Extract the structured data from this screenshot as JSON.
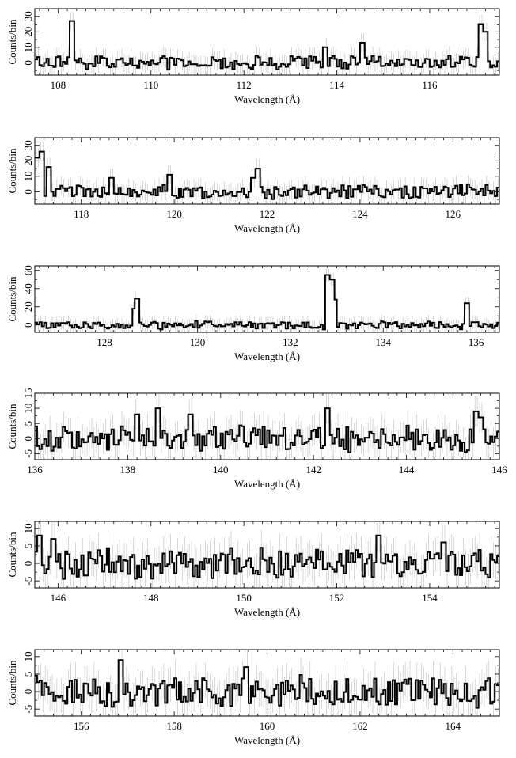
{
  "chart_data": [
    {
      "type": "line",
      "step": true,
      "xlabel": "Wavelength (Å)",
      "ylabel": "Counts/bin",
      "xlim": [
        107.5,
        117.5
      ],
      "ylim": [
        -8,
        35
      ],
      "xticks": [
        108,
        110,
        112,
        114,
        116
      ],
      "yticks": [
        0,
        10,
        20,
        30
      ],
      "peaks": [
        {
          "x": 108.3,
          "y": 27
        },
        {
          "x": 113.75,
          "y": 10
        },
        {
          "x": 114.55,
          "y": 13
        },
        {
          "x": 117.1,
          "y": 25
        },
        {
          "x": 117.2,
          "y": 20
        }
      ],
      "baseline_noise": 4,
      "error_bar_size": 6
    },
    {
      "type": "line",
      "step": true,
      "xlabel": "Wavelength (Å)",
      "ylabel": "Counts/bin",
      "xlim": [
        117,
        127
      ],
      "ylim": [
        -8,
        35
      ],
      "xticks": [
        118,
        120,
        122,
        124,
        126
      ],
      "yticks": [
        0,
        10,
        20,
        30
      ],
      "peaks": [
        {
          "x": 117.05,
          "y": 22
        },
        {
          "x": 117.15,
          "y": 26
        },
        {
          "x": 117.3,
          "y": 16
        },
        {
          "x": 118.65,
          "y": 9
        },
        {
          "x": 119.9,
          "y": 11
        },
        {
          "x": 121.7,
          "y": 9
        },
        {
          "x": 121.8,
          "y": 15
        }
      ],
      "baseline_noise": 4,
      "error_bar_size": 6
    },
    {
      "type": "line",
      "step": true,
      "xlabel": "Wavelength (Å)",
      "ylabel": "Counts/bin",
      "xlim": [
        126.5,
        136.5
      ],
      "ylim": [
        -8,
        65
      ],
      "xticks": [
        128,
        130,
        132,
        134,
        136
      ],
      "yticks": [
        0,
        20,
        40,
        60
      ],
      "peaks": [
        {
          "x": 128.65,
          "y": 18
        },
        {
          "x": 128.7,
          "y": 29
        },
        {
          "x": 132.8,
          "y": 55
        },
        {
          "x": 132.9,
          "y": 50
        },
        {
          "x": 132.95,
          "y": 28
        },
        {
          "x": 135.8,
          "y": 24
        }
      ],
      "baseline_noise": 4,
      "error_bar_size": 7
    },
    {
      "type": "line",
      "step": true,
      "xlabel": "Wavelength (Å)",
      "ylabel": "Counts/bin",
      "xlim": [
        136,
        146
      ],
      "ylim": [
        -7,
        15
      ],
      "xticks": [
        136,
        138,
        140,
        142,
        144,
        146
      ],
      "yticks": [
        -5,
        0,
        5,
        10,
        15
      ],
      "peaks": [
        {
          "x": 138.2,
          "y": 8
        },
        {
          "x": 138.65,
          "y": 10
        },
        {
          "x": 139.35,
          "y": 8
        },
        {
          "x": 142.3,
          "y": 10
        },
        {
          "x": 145.5,
          "y": 9
        },
        {
          "x": 145.6,
          "y": 7
        }
      ],
      "baseline_noise": 4,
      "error_bar_size": 5
    },
    {
      "type": "line",
      "step": true,
      "xlabel": "Wavelength (Å)",
      "ylabel": "Counts/bin",
      "xlim": [
        145.5,
        155.5
      ],
      "ylim": [
        -7,
        12
      ],
      "xticks": [
        146,
        148,
        150,
        152,
        154
      ],
      "yticks": [
        -5,
        0,
        5,
        10
      ],
      "peaks": [
        {
          "x": 145.6,
          "y": 8
        },
        {
          "x": 145.9,
          "y": 7
        },
        {
          "x": 152.9,
          "y": 8
        },
        {
          "x": 154.3,
          "y": 6
        }
      ],
      "baseline_noise": 4,
      "error_bar_size": 5
    },
    {
      "type": "line",
      "step": true,
      "xlabel": "Wavelength (Å)",
      "ylabel": "Counts/bin",
      "xlim": [
        155,
        165
      ],
      "ylim": [
        -7,
        12
      ],
      "xticks": [
        156,
        158,
        160,
        162,
        164
      ],
      "yticks": [
        -5,
        0,
        5,
        10
      ],
      "peaks": [
        {
          "x": 156.85,
          "y": 9
        },
        {
          "x": 159.55,
          "y": 7
        }
      ],
      "baseline_noise": 4,
      "error_bar_size": 5
    }
  ]
}
